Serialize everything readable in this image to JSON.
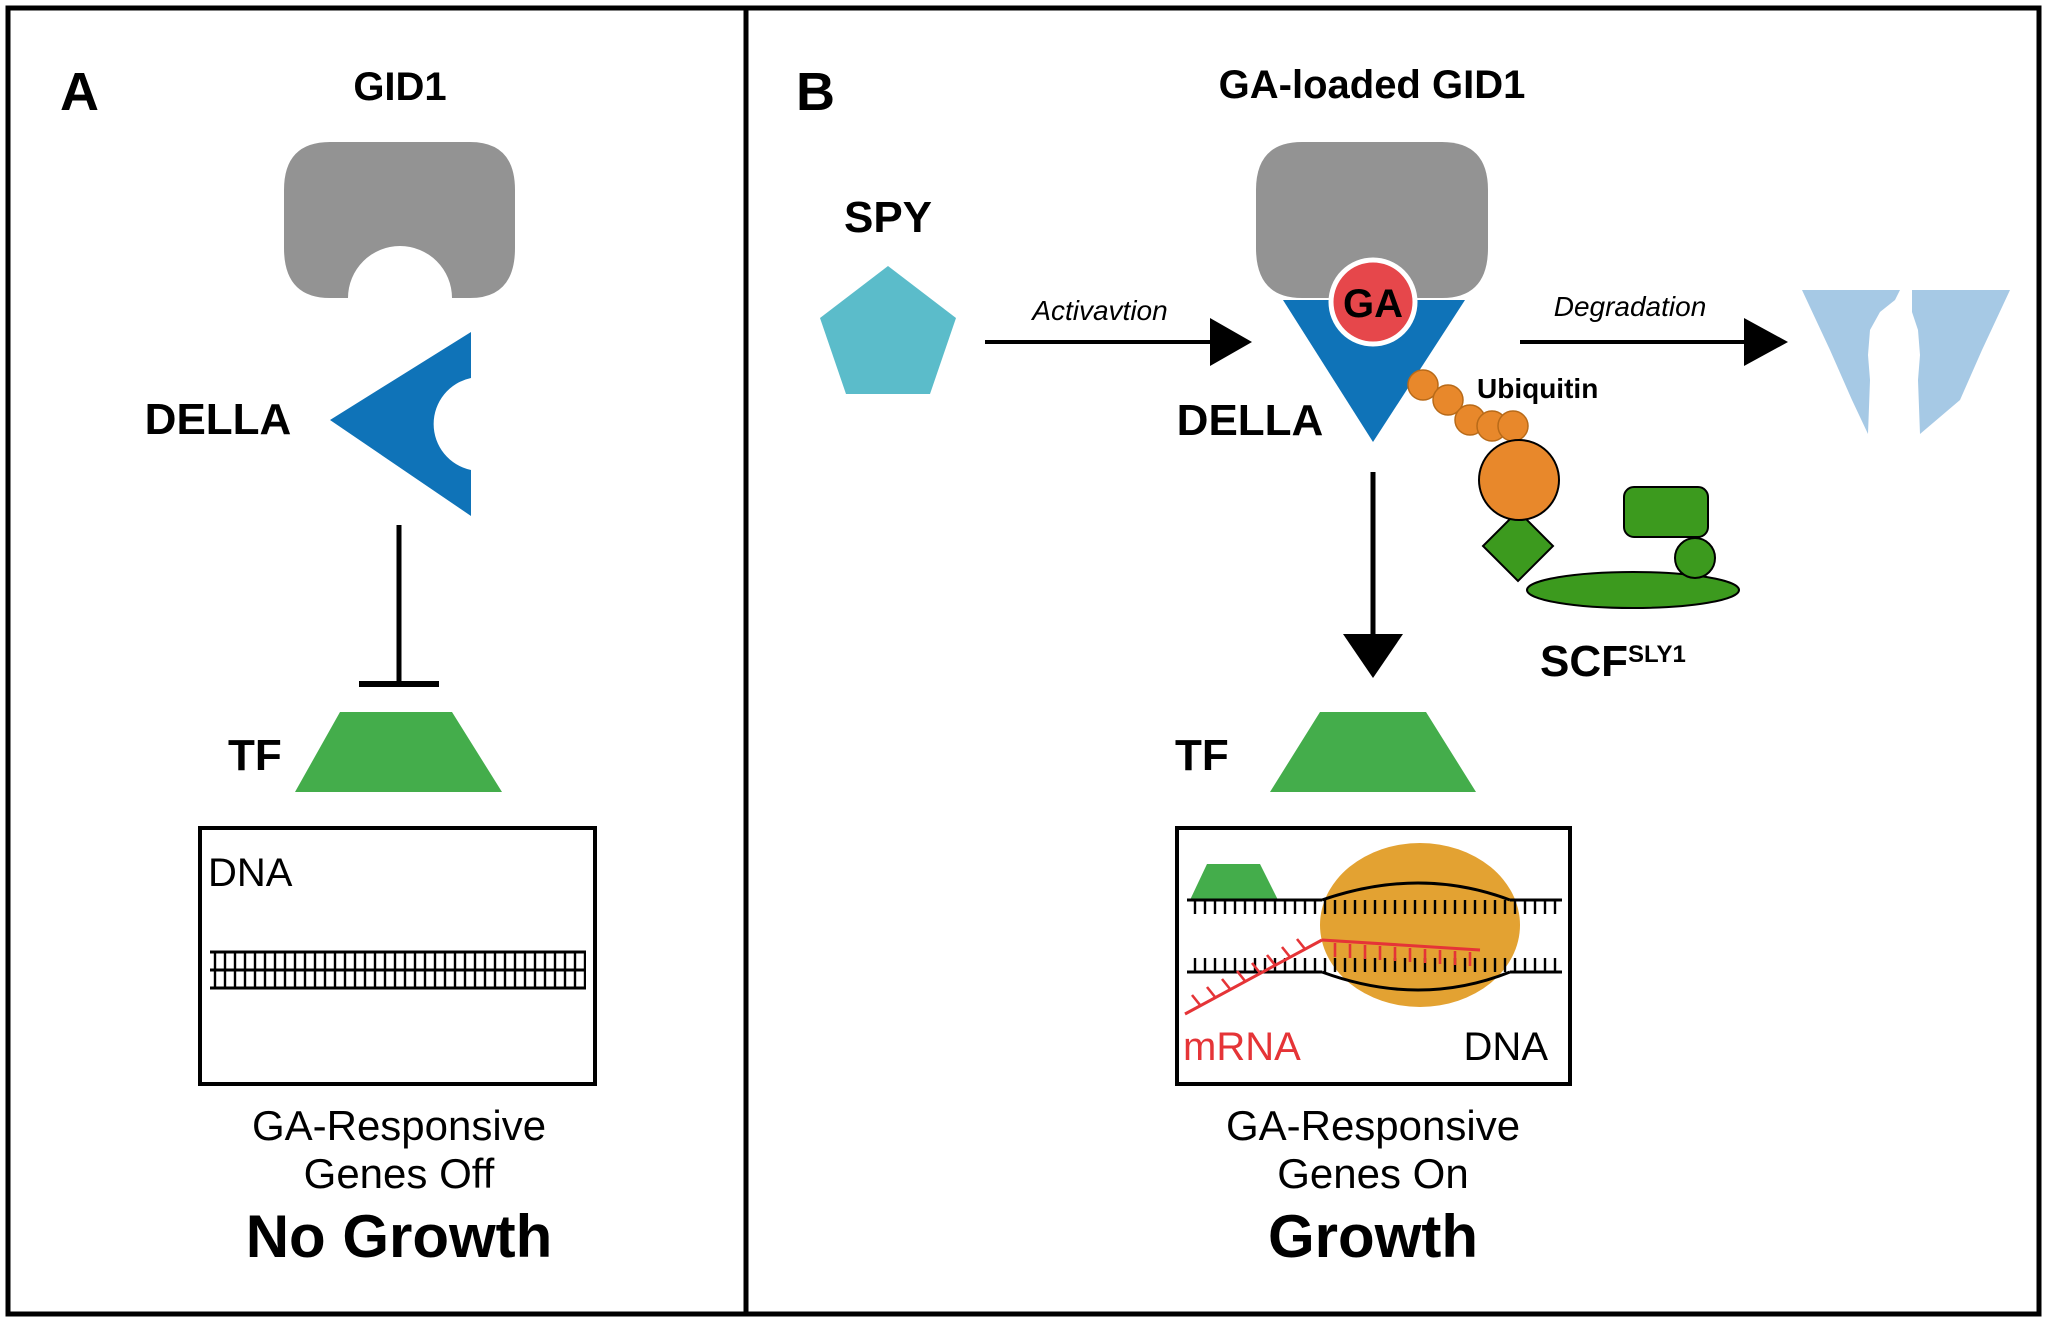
{
  "panel_a": {
    "letter": "A",
    "receptor_label": "GID1",
    "della_label": "DELLA",
    "tf_label": "TF",
    "dna_label": "DNA",
    "status_line1": "GA-Responsive",
    "status_line2": "Genes Off",
    "outcome": "No Growth"
  },
  "panel_b": {
    "letter": "B",
    "receptor_label": "GA-loaded GID1",
    "ga_label": "GA",
    "spy_label": "SPY",
    "activation_label": "Activavtion",
    "degradation_label": "Degradation",
    "ubiquitin_label": "Ubiquitin",
    "della_label": "DELLA",
    "scf_label": "SCF",
    "scf_superscript": "SLY1",
    "tf_label": "TF",
    "mrna_label": "mRNA",
    "dna_label": "DNA",
    "status_line1": "GA-Responsive",
    "status_line2": "Genes On",
    "outcome": "Growth"
  },
  "colors": {
    "gid1": "#939393",
    "della": "#0f73b8",
    "tf": "#44ad4b",
    "spy": "#5bbcca",
    "ga": "#e6474b",
    "ubiquitin": "#e8882b",
    "scf": "#3c9a1e",
    "polymerase": "#e3a232",
    "mrna": "#e53437",
    "degraded_della": "#a6c9e5"
  }
}
